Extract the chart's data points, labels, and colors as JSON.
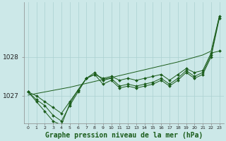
{
  "xlabel": "Graphe pression niveau de la mer (hPa)",
  "background_color": "#cce8e8",
  "grid_color": "#aad0d0",
  "line_color": "#1a5c1a",
  "marker_color": "#1a5c1a",
  "x_values": [
    0,
    1,
    2,
    3,
    4,
    5,
    6,
    7,
    8,
    9,
    10,
    11,
    12,
    13,
    14,
    15,
    16,
    17,
    18,
    19,
    20,
    21,
    22,
    23
  ],
  "series1": [
    1027.1,
    1027.0,
    1026.85,
    1026.7,
    1026.55,
    1026.85,
    1027.15,
    1027.45,
    1027.55,
    1027.45,
    1027.5,
    1027.4,
    1027.45,
    1027.4,
    1027.45,
    1027.5,
    1027.55,
    1027.4,
    1027.55,
    1027.7,
    1027.6,
    1027.65,
    1028.1,
    1028.15
  ],
  "series2": [
    1027.1,
    1026.9,
    1026.75,
    1026.5,
    1026.35,
    1026.75,
    1027.1,
    1027.45,
    1027.6,
    1027.4,
    1027.45,
    1027.25,
    1027.3,
    1027.25,
    1027.3,
    1027.35,
    1027.45,
    1027.3,
    1027.45,
    1027.65,
    1027.5,
    1027.6,
    1028.05,
    1029.05
  ],
  "series3": [
    1027.1,
    1026.85,
    1026.6,
    1026.35,
    1026.25,
    1026.8,
    1027.15,
    1027.45,
    1027.55,
    1027.3,
    1027.4,
    1027.2,
    1027.25,
    1027.2,
    1027.25,
    1027.3,
    1027.4,
    1027.25,
    1027.4,
    1027.6,
    1027.45,
    1027.55,
    1028.0,
    1029.0
  ],
  "trend": [
    1027.02,
    1027.06,
    1027.1,
    1027.14,
    1027.18,
    1027.22,
    1027.27,
    1027.32,
    1027.37,
    1027.42,
    1027.47,
    1027.52,
    1027.57,
    1027.62,
    1027.67,
    1027.72,
    1027.77,
    1027.82,
    1027.87,
    1027.93,
    1027.99,
    1028.05,
    1028.15,
    1029.05
  ],
  "ylim": [
    1026.3,
    1029.4
  ],
  "yticks": [
    1027,
    1028
  ],
  "xlim": [
    -0.5,
    23.5
  ]
}
